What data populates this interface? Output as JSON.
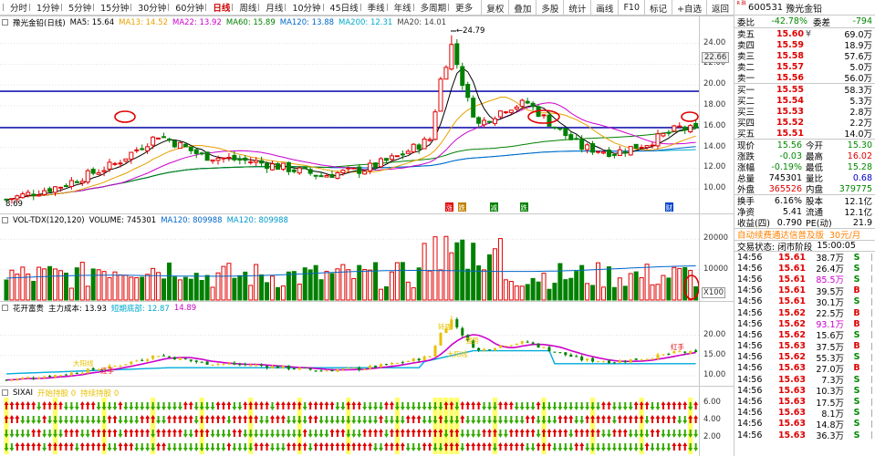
{
  "toolbar": {
    "periods": [
      "分时",
      "1分钟",
      "5分钟",
      "15分钟",
      "30分钟",
      "60分钟",
      "日线",
      "周线",
      "月线",
      "10分钟",
      "45日线",
      "季线",
      "年线",
      "多周期",
      "更多"
    ],
    "active_period": "日线",
    "buttons": [
      "复权",
      "叠加",
      "多股",
      "统计",
      "画线",
      "F10",
      "标记",
      "+自选",
      "返回"
    ]
  },
  "main_chart": {
    "header": {
      "name": "豫光金铅(日线)",
      "ma5": "MA5: 15.64",
      "ma13": "MA13: 14.52",
      "ma22": "MA22: 13.92",
      "ma60": "MA60: 15.89",
      "ma120": "MA120: 13.88",
      "ma200": "MA200: 12.31",
      "ma20": "MA20: 14.01"
    },
    "colors": {
      "ma5": "#000000",
      "ma13": "#e8a000",
      "ma22": "#cc00cc",
      "ma60": "#008000",
      "ma120": "#0066cc",
      "ma200": "#00aacc",
      "ma20": "#444444"
    },
    "y_ticks": [
      "24.00",
      "22.00",
      "20.00",
      "18.00",
      "16.00",
      "14.00",
      "12.00",
      "10.00"
    ],
    "current_price_label": "22.66",
    "high_label": "24.79",
    "low_label": "8.69",
    "event_marks": [
      "涨",
      "跌",
      "减",
      "跌",
      "财"
    ]
  },
  "volume_chart": {
    "header": {
      "title": "VOL-TDX(120,120)",
      "volume": "VOLUME: 745301",
      "ma120": "MA120: 809988",
      "ma120b": "MA120: 809988"
    },
    "y_ticks": [
      "20000",
      "10000"
    ],
    "unit": "X100"
  },
  "cost_chart": {
    "header": {
      "title": "花开富贵",
      "main_cost": "主力成本: 13.93",
      "short_bottom": "短期底部: 12.87",
      "value3": "14.89"
    },
    "y_ticks": [
      "20.00",
      "15.00",
      "10.00"
    ],
    "annotations": [
      "红手",
      "大阳线",
      "转强",
      "强势",
      "大阳线",
      "红手"
    ]
  },
  "sixai_chart": {
    "header": {
      "title": "SIXAI",
      "left_label": "开始持股 0",
      "right_label": "持续持股 0"
    },
    "y_ticks": [
      "6.00",
      "4.00",
      "2.00"
    ]
  },
  "quote": {
    "badge": "R 融",
    "code": "600531",
    "name": "豫光金铅",
    "commission_ratio_label": "委比",
    "commission_ratio": "-42.78%",
    "commission_diff_label": "委差",
    "commission_diff": "-794",
    "asks": [
      {
        "label": "卖五",
        "price": "15.60",
        "flag": "¥",
        "vol": "69.0万"
      },
      {
        "label": "卖四",
        "price": "15.59",
        "flag": "",
        "vol": "18.9万"
      },
      {
        "label": "卖三",
        "price": "15.58",
        "flag": "",
        "vol": "57.6万"
      },
      {
        "label": "卖二",
        "price": "15.57",
        "flag": "",
        "vol": "5.0万"
      },
      {
        "label": "卖一",
        "price": "15.56",
        "flag": "",
        "vol": "56.0万"
      }
    ],
    "bids": [
      {
        "label": "买一",
        "price": "15.55",
        "vol": "58.3万"
      },
      {
        "label": "买二",
        "price": "15.54",
        "vol": "5.3万"
      },
      {
        "label": "买三",
        "price": "15.53",
        "vol": "2.8万"
      },
      {
        "label": "买四",
        "price": "15.52",
        "vol": "2.2万"
      },
      {
        "label": "买五",
        "price": "15.51",
        "vol": "14.0万"
      }
    ],
    "stats1": [
      {
        "l1": "现价",
        "v1": "15.56",
        "c1": "green",
        "l2": "今开",
        "v2": "15.30",
        "c2": "green"
      },
      {
        "l1": "涨跌",
        "v1": "-0.03",
        "c1": "green",
        "l2": "最高",
        "v2": "16.02",
        "c2": "red"
      },
      {
        "l1": "涨幅",
        "v1": "-0.19%",
        "c1": "green",
        "l2": "最低",
        "v2": "15.28",
        "c2": "green"
      },
      {
        "l1": "总量",
        "v1": "745301",
        "c1": "",
        "l2": "量比",
        "v2": "0.68",
        "c2": "blue"
      },
      {
        "l1": "外盘",
        "v1": "365526",
        "c1": "red",
        "l2": "内盘",
        "v2": "379775",
        "c2": "green"
      }
    ],
    "stats2": [
      {
        "l1": "换手",
        "v1": "6.16%",
        "l2": "股本",
        "v2": "12.1亿"
      },
      {
        "l1": "净资",
        "v1": "5.41",
        "l2": "流通",
        "v2": "12.1亿"
      },
      {
        "l1": "收益(四)",
        "v1": "0.790",
        "l2": "PE(动)",
        "v2": "21.9"
      }
    ],
    "ad": "自动续费通达信普及版",
    "ad_price": "30元/月",
    "state_label": "交易状态:",
    "state": "闭市阶段",
    "state_time": "15:00:05",
    "trades": [
      {
        "t": "14:56",
        "p": "15.61",
        "v": "38.7万",
        "d": "S"
      },
      {
        "t": "14:56",
        "p": "15.61",
        "v": "26.4万",
        "d": "S"
      },
      {
        "t": "14:56",
        "p": "15.61",
        "v": "85.5万",
        "d": "S"
      },
      {
        "t": "14:56",
        "p": "15.61",
        "v": "39.5万",
        "d": "B"
      },
      {
        "t": "14:56",
        "p": "15.61",
        "v": "30.1万",
        "d": "S"
      },
      {
        "t": "14:56",
        "p": "15.62",
        "v": "22.5万",
        "d": "B"
      },
      {
        "t": "14:56",
        "p": "15.62",
        "v": "93.1万",
        "d": "B"
      },
      {
        "t": "14:56",
        "p": "15.62",
        "v": "15.6万",
        "d": "S"
      },
      {
        "t": "14:56",
        "p": "15.63",
        "v": "37.5万",
        "d": "B"
      },
      {
        "t": "14:56",
        "p": "15.62",
        "v": "55.3万",
        "d": "S"
      },
      {
        "t": "14:56",
        "p": "15.63",
        "v": "27.0万",
        "d": "B"
      },
      {
        "t": "14:56",
        "p": "15.63",
        "v": "7.3万",
        "d": "S"
      },
      {
        "t": "14:56",
        "p": "15.63",
        "v": "10.3万",
        "d": "S"
      },
      {
        "t": "14:56",
        "p": "15.63",
        "v": "17.5万",
        "d": "S"
      },
      {
        "t": "14:56",
        "p": "15.63",
        "v": "8.1万",
        "d": "S"
      },
      {
        "t": "14:56",
        "p": "15.63",
        "v": "14.8万",
        "d": "S"
      },
      {
        "t": "14:56",
        "p": "15.63",
        "v": "36.3万",
        "d": "S"
      }
    ]
  }
}
